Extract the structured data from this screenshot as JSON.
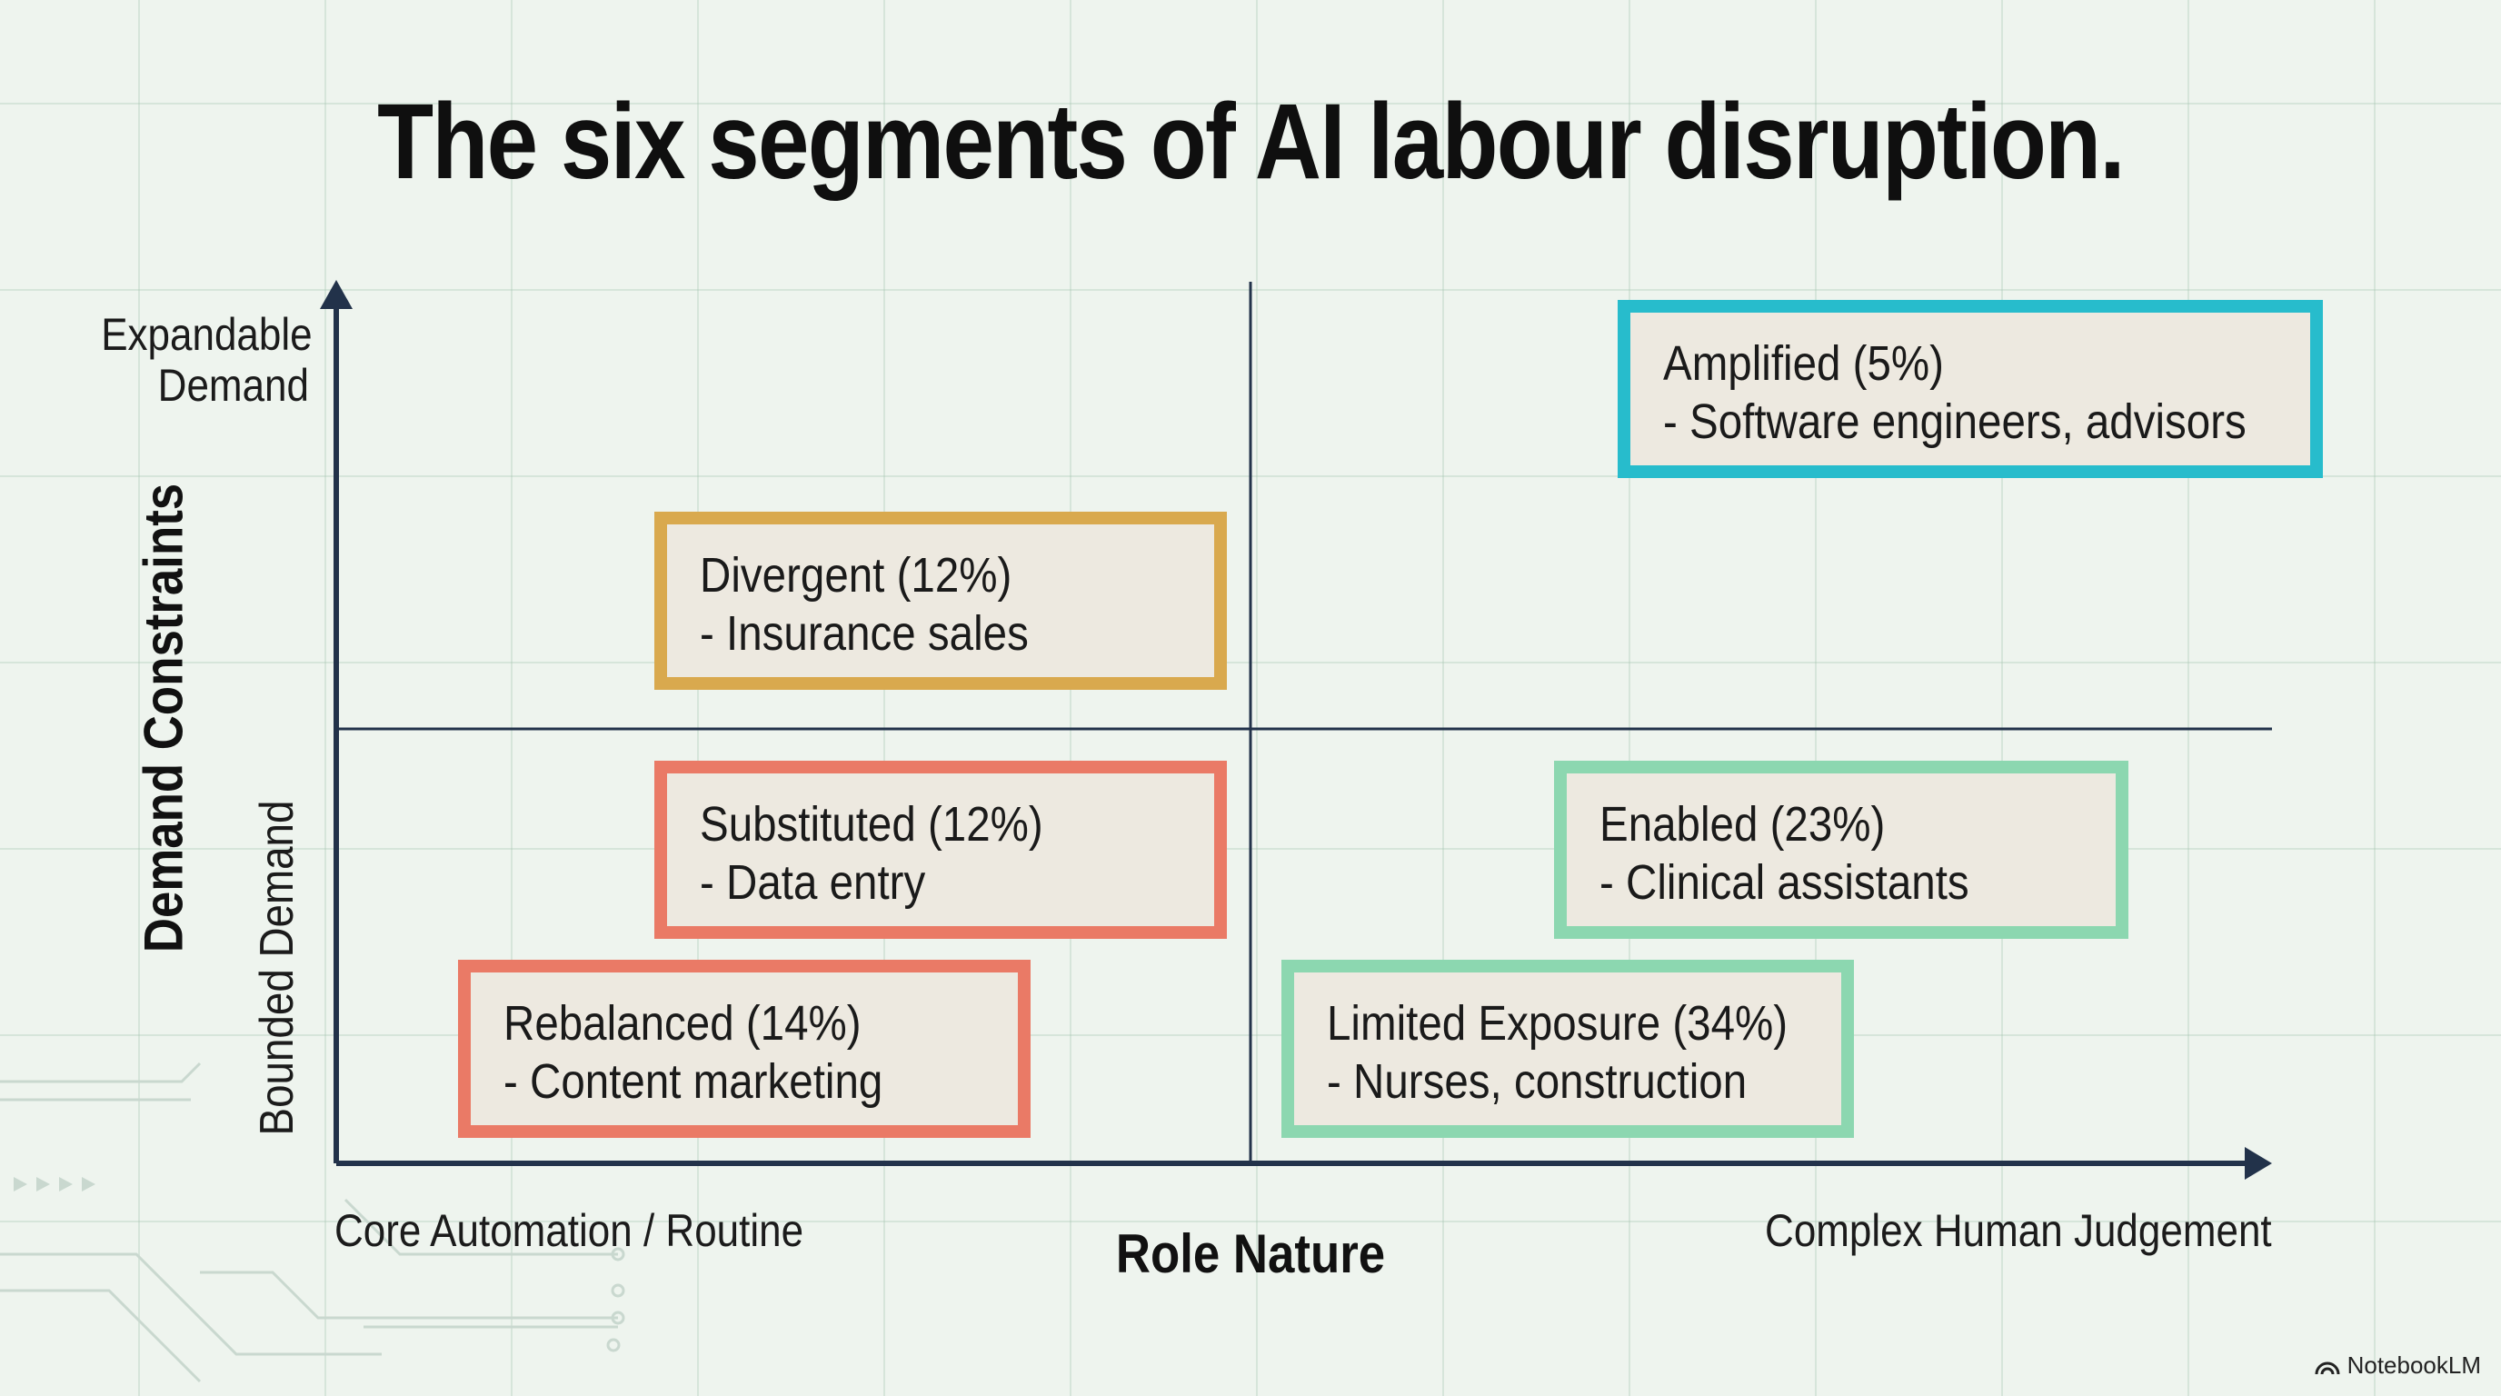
{
  "title": "The six segments of AI labour disruption.",
  "y_axis": {
    "title": "Demand Constraints",
    "top_label_line1": "Expandable",
    "top_label_line2": "Demand",
    "bottom_label": "Bounded Demand"
  },
  "x_axis": {
    "title": "Role Nature",
    "left_label": "Core Automation / Routine",
    "right_label": "Complex Human Judgement"
  },
  "segments": [
    {
      "name": "Amplified (5%)",
      "examples": "- Software engineers, advisors",
      "color": "#27bccc"
    },
    {
      "name": "Divergent (12%)",
      "examples": "- Insurance sales",
      "color": "#d9a94e"
    },
    {
      "name": "Substituted (12%)",
      "examples": "- Data entry",
      "color": "#ea7a66"
    },
    {
      "name": "Enabled (23%)",
      "examples": "- Clinical assistants",
      "color": "#8cd7b0"
    },
    {
      "name": "Rebalanced (14%)",
      "examples": "- Content marketing",
      "color": "#ea7a66"
    },
    {
      "name": "Limited Exposure (34%)",
      "examples": "- Nurses, construction",
      "color": "#8cd7b0"
    }
  ],
  "brand": "NotebookLM",
  "colors": {
    "background": "#eef4ee",
    "axis": "#22324a"
  }
}
